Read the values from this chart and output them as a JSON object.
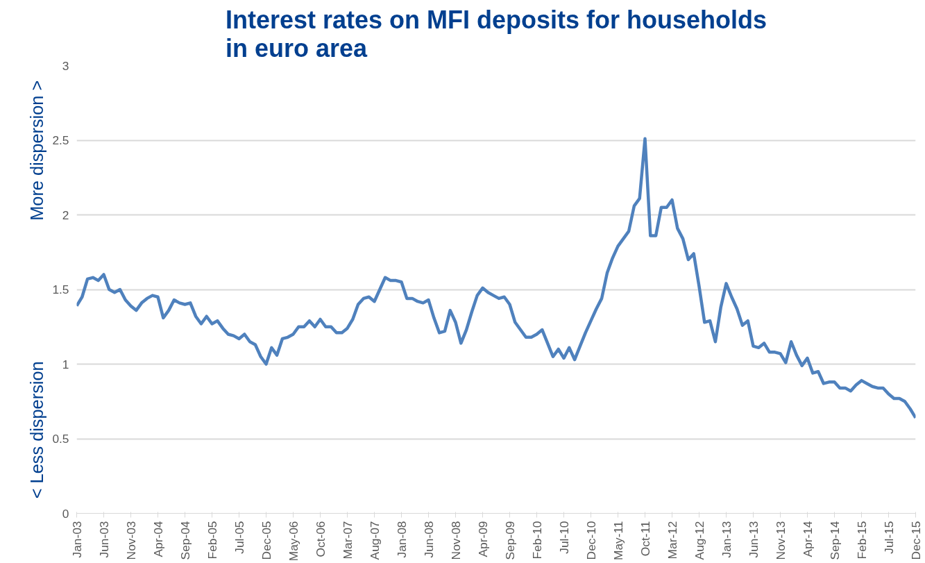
{
  "chart_data": {
    "type": "line",
    "title": "Interest rates on MFI deposits for households in euro area",
    "ylabel": "< Less dispersion          More dispersion >",
    "categories": [
      "Jan-03",
      null,
      null,
      null,
      null,
      "Jun-03",
      null,
      null,
      null,
      null,
      "Nov-03",
      null,
      null,
      null,
      null,
      "Apr-04",
      null,
      null,
      null,
      null,
      "Sep-04",
      null,
      null,
      null,
      null,
      "Feb-05",
      null,
      null,
      null,
      null,
      "Jul-05",
      null,
      null,
      null,
      null,
      "Dec-05",
      null,
      null,
      null,
      null,
      "May-06",
      null,
      null,
      null,
      null,
      "Oct-06",
      null,
      null,
      null,
      null,
      "Mar-07",
      null,
      null,
      null,
      null,
      "Aug-07",
      null,
      null,
      null,
      null,
      "Jan-08",
      null,
      null,
      null,
      null,
      "Jun-08",
      null,
      null,
      null,
      null,
      "Nov-08",
      null,
      null,
      null,
      null,
      "Apr-09",
      null,
      null,
      null,
      null,
      "Sep-09",
      null,
      null,
      null,
      null,
      "Feb-10",
      null,
      null,
      null,
      null,
      "Jul-10",
      null,
      null,
      null,
      null,
      "Dec-10",
      null,
      null,
      null,
      null,
      "May-11",
      null,
      null,
      null,
      null,
      "Oct-11",
      null,
      null,
      null,
      null,
      "Mar-12",
      null,
      null,
      null,
      null,
      "Aug-12",
      null,
      null,
      null,
      null,
      "Jan-13",
      null,
      null,
      null,
      null,
      "Jun-13",
      null,
      null,
      null,
      null,
      "Nov-13",
      null,
      null,
      null,
      null,
      "Apr-14",
      null,
      null,
      null,
      null,
      "Sep-14",
      null,
      null,
      null,
      null,
      "Feb-15",
      null,
      null,
      null,
      null,
      "Jul-15",
      null,
      null,
      null,
      null,
      "Dec-15"
    ],
    "series": [
      {
        "color": "#4f81bd",
        "values": [
          1.39,
          1.45,
          1.57,
          1.58,
          1.56,
          1.6,
          1.5,
          1.48,
          1.5,
          1.43,
          1.39,
          1.36,
          1.41,
          1.44,
          1.46,
          1.45,
          1.31,
          1.36,
          1.43,
          1.41,
          1.4,
          1.41,
          1.32,
          1.27,
          1.32,
          1.27,
          1.29,
          1.24,
          1.2,
          1.19,
          1.17,
          1.2,
          1.15,
          1.13,
          1.05,
          1.0,
          1.11,
          1.06,
          1.17,
          1.18,
          1.2,
          1.25,
          1.25,
          1.29,
          1.25,
          1.3,
          1.25,
          1.25,
          1.21,
          1.21,
          1.24,
          1.3,
          1.4,
          1.44,
          1.45,
          1.42,
          1.5,
          1.58,
          1.56,
          1.56,
          1.55,
          1.44,
          1.44,
          1.42,
          1.41,
          1.43,
          1.31,
          1.21,
          1.22,
          1.36,
          1.28,
          1.14,
          1.23,
          1.35,
          1.46,
          1.51,
          1.48,
          1.46,
          1.44,
          1.45,
          1.4,
          1.28,
          1.23,
          1.18,
          1.18,
          1.2,
          1.23,
          1.14,
          1.05,
          1.1,
          1.04,
          1.11,
          1.03,
          1.12,
          1.21,
          1.29,
          1.37,
          1.44,
          1.61,
          1.71,
          1.79,
          1.84,
          1.89,
          2.06,
          2.11,
          2.51,
          1.86,
          1.86,
          2.05,
          2.05,
          2.1,
          1.91,
          1.84,
          1.7,
          1.74,
          1.52,
          1.28,
          1.29,
          1.15,
          1.38,
          1.54,
          1.45,
          1.37,
          1.26,
          1.29,
          1.12,
          1.11,
          1.14,
          1.08,
          1.08,
          1.07,
          1.01,
          1.15,
          1.06,
          0.99,
          1.04,
          0.94,
          0.95,
          0.87,
          0.88,
          0.88,
          0.84,
          0.84,
          0.82,
          0.86,
          0.89,
          0.87,
          0.85,
          0.84,
          0.84,
          0.8,
          0.77,
          0.77,
          0.75,
          0.7,
          0.64
        ]
      }
    ],
    "ylim": [
      0,
      3
    ],
    "yticks": [
      0,
      0.5,
      1,
      1.5,
      2,
      2.5,
      3
    ],
    "grid": "y",
    "marker": "none",
    "line_style": "solid"
  }
}
